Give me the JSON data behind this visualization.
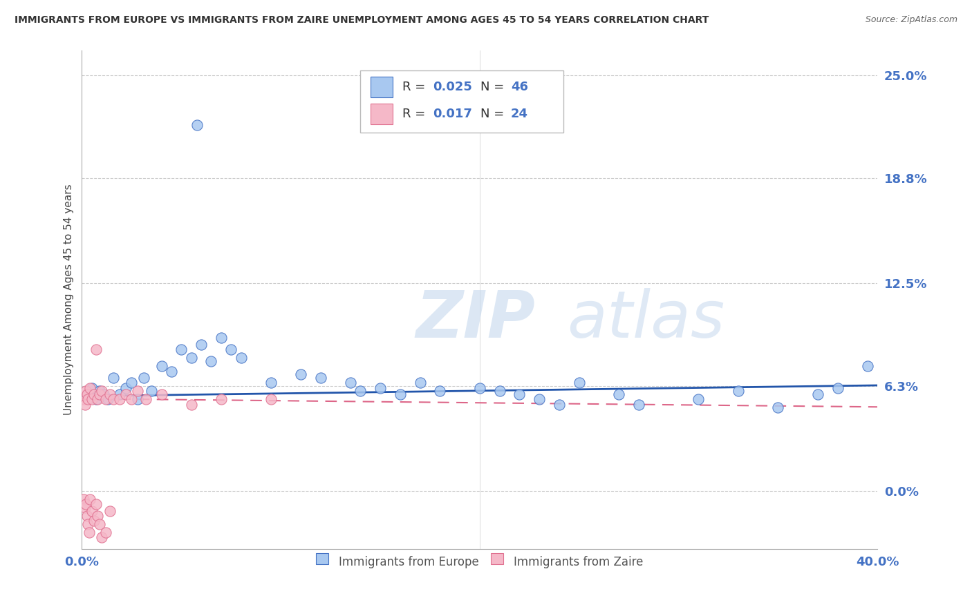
{
  "title": "IMMIGRANTS FROM EUROPE VS IMMIGRANTS FROM ZAIRE UNEMPLOYMENT AMONG AGES 45 TO 54 YEARS CORRELATION CHART",
  "source": "Source: ZipAtlas.com",
  "ylabel": "Unemployment Among Ages 45 to 54 years",
  "yticks_labels": [
    "0.0%",
    "6.3%",
    "12.5%",
    "18.8%",
    "25.0%"
  ],
  "ytick_vals": [
    0.0,
    6.3,
    12.5,
    18.8,
    25.0
  ],
  "xtick_vals": [
    0.0,
    20.0,
    40.0
  ],
  "xtick_labels": [
    "0.0%",
    "",
    "40.0%"
  ],
  "xmin": 0.0,
  "xmax": 40.0,
  "ymin": -3.5,
  "ymax": 26.5,
  "legend_r1_label": "R = ",
  "legend_r1_val": "0.025",
  "legend_n1_label": "N = ",
  "legend_n1_val": "46",
  "legend_r2_label": "R = ",
  "legend_r2_val": "0.017",
  "legend_n2_label": "N = ",
  "legend_n2_val": "24",
  "legend_label1": "Immigrants from Europe",
  "legend_label2": "Immigrants from Zaire",
  "blue_fill": "#A8C8F0",
  "blue_edge": "#4472C4",
  "pink_fill": "#F5B8C8",
  "pink_edge": "#E07090",
  "blue_line_color": "#2255AA",
  "pink_line_color": "#DD6688",
  "watermark_color": "#D8E8F5",
  "grid_color": "#CCCCCC",
  "axis_label_color": "#4472C4",
  "title_color": "#333333",
  "source_color": "#666666",
  "europe_x": [
    0.3,
    0.5,
    0.7,
    0.9,
    1.1,
    1.3,
    1.6,
    1.9,
    2.2,
    2.5,
    2.8,
    3.1,
    3.5,
    4.0,
    4.5,
    5.0,
    5.5,
    6.0,
    6.5,
    7.0,
    7.5,
    8.0,
    9.5,
    11.0,
    12.0,
    13.5,
    14.0,
    15.0,
    16.0,
    17.0,
    18.0,
    20.0,
    21.0,
    22.0,
    23.0,
    24.0,
    25.0,
    27.0,
    28.0,
    31.0,
    33.0,
    35.0,
    37.0,
    38.0,
    39.5,
    5.8
  ],
  "europe_y": [
    5.8,
    6.2,
    5.5,
    6.0,
    5.8,
    5.5,
    6.8,
    5.8,
    6.2,
    6.5,
    5.5,
    6.8,
    6.0,
    7.5,
    7.2,
    8.5,
    8.0,
    8.8,
    7.8,
    9.2,
    8.5,
    8.0,
    6.5,
    7.0,
    6.8,
    6.5,
    6.0,
    6.2,
    5.8,
    6.5,
    6.0,
    6.2,
    6.0,
    5.8,
    5.5,
    5.2,
    6.5,
    5.8,
    5.2,
    5.5,
    6.0,
    5.0,
    5.8,
    6.2,
    7.5,
    22.0
  ],
  "zaire_x": [
    0.1,
    0.15,
    0.2,
    0.25,
    0.3,
    0.4,
    0.5,
    0.6,
    0.7,
    0.8,
    0.9,
    1.0,
    1.2,
    1.4,
    1.6,
    1.9,
    2.2,
    2.5,
    2.8,
    3.2,
    4.0,
    5.5,
    7.0,
    9.5
  ],
  "zaire_y": [
    5.5,
    5.2,
    6.0,
    5.8,
    5.5,
    6.2,
    5.5,
    5.8,
    8.5,
    5.5,
    5.8,
    6.0,
    5.5,
    5.8,
    5.5,
    5.5,
    5.8,
    5.5,
    6.0,
    5.5,
    5.8,
    5.2,
    5.5,
    5.5
  ],
  "zaire_below_x": [
    0.1,
    0.15,
    0.2,
    0.25,
    0.3,
    0.35,
    0.4,
    0.5,
    0.6,
    0.7,
    0.8,
    0.9,
    1.0,
    1.2,
    1.4
  ],
  "zaire_below_y": [
    -0.5,
    -1.0,
    -0.8,
    -1.5,
    -2.0,
    -2.5,
    -0.5,
    -1.2,
    -1.8,
    -0.8,
    -1.5,
    -2.0,
    -2.8,
    -2.5,
    -1.2
  ]
}
